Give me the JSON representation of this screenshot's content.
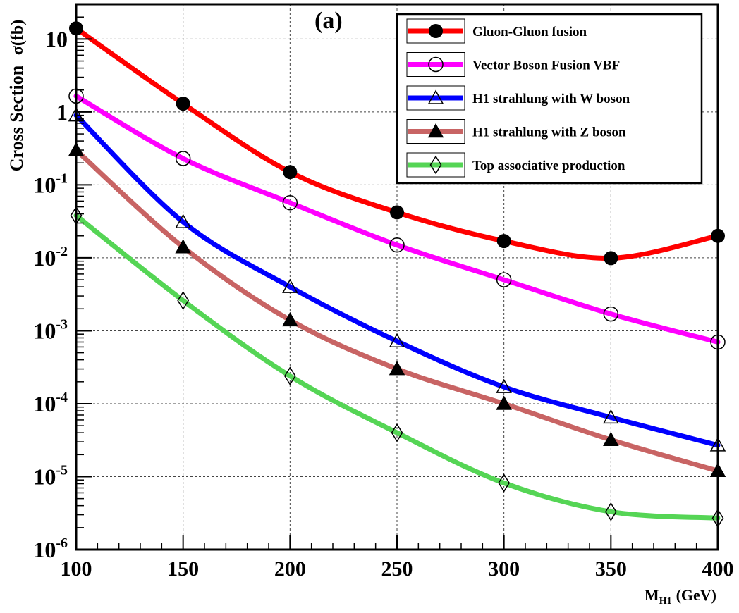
{
  "chart_data": {
    "type": "line",
    "panel_label": "(a)",
    "title": "",
    "xlabel": {
      "main": "M",
      "sub": "H1",
      "unit": "(GeV)"
    },
    "ylabel": {
      "text": "Cross Section",
      "symbol": "σ(fb)"
    },
    "x_scale": "linear",
    "y_scale": "log",
    "xlim": [
      100,
      400
    ],
    "ylim": [
      1e-06,
      30
    ],
    "x_ticks": [
      "100",
      "150",
      "200",
      "250",
      "300",
      "350",
      "400"
    ],
    "y_ticks": [
      {
        "base": "10",
        "exp": "",
        "value": 10
      },
      {
        "base": "1",
        "exp": "",
        "value": 1
      },
      {
        "base": "10",
        "exp": "-1",
        "value": 0.1
      },
      {
        "base": "10",
        "exp": "-2",
        "value": 0.01
      },
      {
        "base": "10",
        "exp": "-3",
        "value": 0.001
      },
      {
        "base": "10",
        "exp": "-4",
        "value": 0.0001
      },
      {
        "base": "10",
        "exp": "-5",
        "value": 1e-05
      },
      {
        "base": "10",
        "exp": "-6",
        "value": 1e-06
      }
    ],
    "grid": true,
    "legend_position": "top-right",
    "x": [
      100,
      150,
      200,
      250,
      300,
      350,
      400
    ],
    "series": [
      {
        "name": "Gluon-Gluon fusion",
        "color": "#ff0000",
        "marker": "filled-circle",
        "values": [
          14,
          1.3,
          0.15,
          0.042,
          0.017,
          0.0099,
          0.02
        ]
      },
      {
        "name": "Vector Boson Fusion VBF",
        "color": "#ff00ff",
        "marker": "open-circle",
        "values": [
          1.65,
          0.23,
          0.057,
          0.015,
          0.005,
          0.0017,
          0.0007
        ]
      },
      {
        "name": "H1 strahlung with W boson",
        "color": "#0000ff",
        "marker": "open-triangle",
        "values": [
          0.9,
          0.031,
          0.004,
          0.00072,
          0.00017,
          6.5e-05,
          2.7e-05
        ]
      },
      {
        "name": "H1 strahlung with Z boson",
        "color": "#c86464",
        "marker": "filled-triangle",
        "values": [
          0.3,
          0.014,
          0.0014,
          0.0003,
          0.0001,
          3.2e-05,
          1.2e-05
        ]
      },
      {
        "name": "Top associative production",
        "color": "#55d555",
        "marker": "open-diamond",
        "values": [
          0.038,
          0.0026,
          0.00024,
          4e-05,
          8.2e-06,
          3.3e-06,
          2.7e-06
        ]
      }
    ]
  }
}
